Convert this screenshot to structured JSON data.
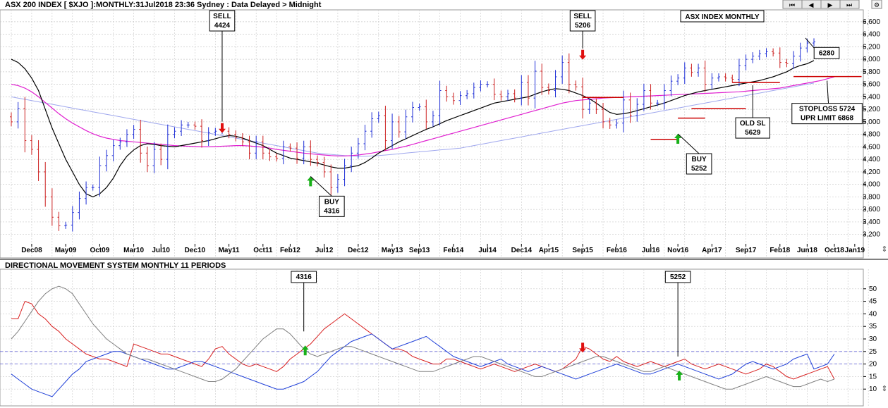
{
  "chart_data": [
    {
      "type": "bar",
      "title": "ASX 200 INDEX [ $XJO ]:MONTHLY:31Jul2018 23:36 Sydney : Data Delayed > Midnight",
      "badge": "ASX INDEX MONTHLY",
      "ylim": [
        3050,
        6700
      ],
      "yticks": [
        3200,
        3400,
        3600,
        3800,
        4000,
        4200,
        4400,
        4600,
        4800,
        5000,
        5200,
        5400,
        5600,
        5800,
        6000,
        6200,
        6400,
        6600
      ],
      "ytick_labels": [
        "3,200",
        "3,400",
        "3,600",
        "3,800",
        "4,000",
        "4,200",
        "4,400",
        "4,600",
        "4,800",
        "5,000",
        "5,200",
        "5,400",
        "5,600",
        "5,800",
        "6,000",
        "6,200",
        "6,400",
        "6,600"
      ],
      "x_tick_labels": [
        "Dec08",
        "May09",
        "Oct09",
        "Mar10",
        "Jul10",
        "Dec10",
        "May11",
        "Oct11",
        "Feb12",
        "Jul12",
        "Dec12",
        "May13",
        "Sep13",
        "Feb14",
        "Jul14",
        "Dec14",
        "Apr15",
        "Sep15",
        "Feb16",
        "Jul16",
        "Nov16",
        "Apr17",
        "Sep17",
        "Feb18",
        "Jun18",
        "Oct18",
        "Jan19"
      ],
      "months_total": 146,
      "close": [
        5000,
        5210,
        4700,
        4560,
        4200,
        3800,
        3475,
        3340,
        3350,
        3550,
        3775,
        3950,
        3950,
        4300,
        4460,
        4620,
        4680,
        4800,
        4880,
        4500,
        4300,
        4560,
        4400,
        4800,
        4850,
        4950,
        4950,
        4930,
        4700,
        4830,
        4850,
        4850,
        4800,
        4750,
        4680,
        4500,
        4680,
        4500,
        4440,
        4420,
        4600,
        4580,
        4420,
        4600,
        4400,
        4350,
        4200,
        3950,
        4080,
        4300,
        4500,
        4650,
        4850,
        5050,
        5100,
        4700,
        5000,
        4840,
        5080,
        5230,
        5240,
        5000,
        5100,
        5500,
        5400,
        5340,
        5420,
        5450,
        5550,
        5600,
        5600,
        5440,
        5400,
        5450,
        5380,
        5630,
        5380,
        5810,
        5550,
        5500,
        5720,
        5950,
        5600,
        5560,
        5200,
        5300,
        5200,
        5000,
        4950,
        4980,
        5350,
        5100,
        5280,
        5500,
        5300,
        5300,
        5500,
        5650,
        5700,
        5860,
        5790,
        5860,
        5600,
        5700,
        5720,
        5700,
        5680,
        5900,
        6000,
        6050,
        6090,
        6120,
        6100,
        5950,
        5930,
        6050,
        6180,
        6260,
        6280
      ],
      "min_w": 56,
      "sma10": [
        6000,
        5950,
        5850,
        5700,
        5500,
        5200,
        4900,
        4650,
        4400,
        4200,
        4000,
        3850,
        3800,
        3850,
        3950,
        4100,
        4300,
        4450,
        4550,
        4620,
        4650,
        4640,
        4620,
        4610,
        4600,
        4620,
        4640,
        4660,
        4680,
        4700,
        4730,
        4760,
        4780,
        4770,
        4740,
        4700,
        4660,
        4620,
        4560,
        4500,
        4460,
        4420,
        4400,
        4380,
        4360,
        4340,
        4310,
        4280,
        4260,
        4260,
        4280,
        4300,
        4350,
        4420,
        4500,
        4560,
        4620,
        4680,
        4730,
        4780,
        4830,
        4880,
        4920,
        4970,
        5020,
        5060,
        5100,
        5140,
        5180,
        5220,
        5260,
        5300,
        5320,
        5340,
        5360,
        5380,
        5400,
        5440,
        5480,
        5510,
        5530,
        5520,
        5500,
        5460,
        5420,
        5370,
        5300,
        5220,
        5150,
        5120,
        5130,
        5150,
        5180,
        5210,
        5240,
        5270,
        5300,
        5340,
        5380,
        5420,
        5450,
        5480,
        5500,
        5520,
        5540,
        5560,
        5580,
        5600,
        5620,
        5640,
        5660,
        5690,
        5720,
        5760,
        5800,
        5860,
        5900,
        5930,
        5980
      ],
      "ema_mid": [
        5600,
        5580,
        5540,
        5480,
        5400,
        5310,
        5220,
        5130,
        5050,
        4980,
        4920,
        4860,
        4810,
        4770,
        4740,
        4720,
        4700,
        4690,
        4680,
        4670,
        4660,
        4650,
        4640,
        4630,
        4620,
        4615,
        4610,
        4605,
        4600,
        4600,
        4605,
        4610,
        4615,
        4620,
        4620,
        4615,
        4605,
        4595,
        4580,
        4560,
        4545,
        4530,
        4515,
        4500,
        4490,
        4480,
        4470,
        4460,
        4455,
        4455,
        4460,
        4470,
        4485,
        4500,
        4520,
        4540,
        4560,
        4585,
        4610,
        4640,
        4670,
        4700,
        4730,
        4760,
        4790,
        4820,
        4850,
        4880,
        4910,
        4940,
        4970,
        5000,
        5030,
        5060,
        5090,
        5120,
        5150,
        5180,
        5210,
        5240,
        5270,
        5300,
        5320,
        5340,
        5350,
        5360,
        5370,
        5380,
        5385,
        5390,
        5395,
        5400,
        5405,
        5410,
        5415,
        5420,
        5425,
        5430,
        5435,
        5440,
        5445,
        5450,
        5455,
        5460,
        5465,
        5470,
        5475,
        5480,
        5490,
        5500,
        5510,
        5520,
        5530,
        5540,
        5560,
        5580,
        5600,
        5620,
        5640,
        5660,
        5690,
        5720
      ],
      "ema_slow": [
        5400,
        5380,
        5360,
        5340,
        5320,
        5300,
        5280,
        5260,
        5240,
        5220,
        5200,
        5180,
        5160,
        5140,
        5120,
        5100,
        5080,
        5060,
        5040,
        5020,
        5000,
        4980,
        4960,
        4940,
        4920,
        4900,
        4880,
        4860,
        4840,
        4820,
        4800,
        4780,
        4760,
        4740,
        4720,
        4700,
        4680,
        4660,
        4640,
        4620,
        4600,
        4580,
        4560,
        4540,
        4520,
        4500,
        4490,
        4480,
        4470,
        4460,
        4455,
        4450,
        4450,
        4455,
        4460,
        4470,
        4480,
        4490,
        4500,
        4510,
        4520,
        4530,
        4540,
        4550,
        4560,
        4570,
        4580,
        4600,
        4620,
        4640,
        4660,
        4680,
        4700,
        4720,
        4740,
        4760,
        4780,
        4800,
        4820,
        4840,
        4860,
        4880,
        4900,
        4920,
        4940,
        4960,
        4980,
        5000,
        5020,
        5040,
        5060,
        5080,
        5100,
        5120,
        5140,
        5160,
        5180,
        5200,
        5220,
        5240,
        5260,
        5280,
        5300,
        5320,
        5340,
        5360,
        5380,
        5400,
        5420,
        5440,
        5460,
        5480,
        5500,
        5520,
        5540,
        5560,
        5580,
        5600,
        5620
      ],
      "annotations": [
        {
          "lines": [
            "SELL",
            "4424"
          ],
          "type": "sell",
          "month": 31,
          "value": 4800
        },
        {
          "lines": [
            "BUY",
            "4316"
          ],
          "type": "buy",
          "month": 44,
          "value": 4150
        },
        {
          "lines": [
            "SELL",
            "5206"
          ],
          "type": "sell",
          "month": 84,
          "value": 5970
        },
        {
          "lines": [
            "BUY",
            "5252"
          ],
          "type": "buy",
          "month": 98,
          "value": 4830
        },
        {
          "lines": [
            "6280"
          ],
          "type": "label",
          "month": 118,
          "value": 6280
        },
        {
          "lines": [
            "OLD SL",
            "5629"
          ],
          "type": "label",
          "month": 109,
          "value": 5629
        },
        {
          "lines": [
            "STOPLOSS 5724",
            "UPR LIMIT 6868"
          ],
          "type": "label",
          "month": 122,
          "value": 5724
        }
      ],
      "support_levels": [
        {
          "from": 84,
          "to": 90,
          "value": 5390
        },
        {
          "from": 94,
          "to": 98,
          "value": 4720
        },
        {
          "from": 98,
          "to": 102,
          "value": 5060
        },
        {
          "from": 100,
          "to": 108,
          "value": 5210
        },
        {
          "from": 106,
          "to": 113,
          "value": 5629
        },
        {
          "from": 115,
          "to": 125,
          "value": 5724
        }
      ],
      "colors": {
        "up": "#1f2fd6",
        "down": "#cc2020",
        "sma": "#000000",
        "ema_mid": "#e020d0",
        "ema_slow": "#a0a8ee",
        "grid": "#c8c8c8",
        "support": "#cc0000"
      }
    },
    {
      "type": "line",
      "title": "DIRECTIONAL MOVEMENT SYSTEM MONTHLY 11 PERIODS",
      "ylim": [
        5,
        55
      ],
      "yticks": [
        10,
        15,
        20,
        25,
        30,
        35,
        40,
        45,
        50
      ],
      "ytick_labels": [
        "10",
        "15",
        "20",
        "25",
        "30",
        "35",
        "40",
        "45",
        "50"
      ],
      "ref_lines": [
        20,
        25
      ],
      "series": [
        {
          "color": "#d82020",
          "values": [
            38,
            38,
            45,
            44,
            40,
            38,
            35,
            33,
            30,
            28,
            26,
            24,
            23,
            22,
            22,
            21,
            20,
            19,
            28,
            27,
            26,
            25,
            24,
            24,
            23,
            22,
            21,
            20,
            19,
            22,
            26,
            27,
            24,
            22,
            20,
            19,
            20,
            19,
            18,
            17,
            19,
            22,
            24,
            26,
            28,
            31,
            34,
            36,
            38,
            40,
            38,
            36,
            34,
            32,
            30,
            28,
            26,
            26,
            25,
            23,
            22,
            21,
            20,
            20,
            22,
            22,
            21,
            20,
            19,
            18,
            19,
            20,
            19,
            18,
            17,
            18,
            19,
            20,
            19,
            18,
            17,
            18,
            20,
            22,
            27,
            26,
            24,
            22,
            21,
            23,
            21,
            20,
            19,
            20,
            21,
            20,
            19,
            20,
            21,
            22,
            20,
            19,
            18,
            19,
            20,
            19,
            18,
            17,
            16,
            17,
            18,
            20,
            19,
            17,
            15,
            14,
            15,
            16,
            17,
            18,
            19,
            14
          ]
        },
        {
          "color": "#2040d8",
          "values": [
            16,
            14,
            12,
            10,
            9,
            8,
            7,
            10,
            13,
            16,
            18,
            21,
            22,
            23,
            24,
            25,
            25,
            24,
            23,
            22,
            21,
            20,
            19,
            18,
            18,
            19,
            20,
            21,
            21,
            20,
            19,
            18,
            17,
            16,
            15,
            14,
            13,
            12,
            11,
            10,
            10,
            11,
            12,
            13,
            15,
            17,
            20,
            23,
            25,
            27,
            29,
            30,
            31,
            32,
            30,
            28,
            26,
            27,
            28,
            29,
            30,
            31,
            29,
            27,
            25,
            23,
            22,
            21,
            20,
            19,
            20,
            21,
            22,
            20,
            19,
            18,
            17,
            18,
            19,
            18,
            17,
            16,
            15,
            14,
            15,
            16,
            17,
            18,
            19,
            20,
            19,
            18,
            17,
            16,
            16,
            17,
            18,
            19,
            20,
            19,
            18,
            17,
            16,
            15,
            14,
            15,
            16,
            18,
            20,
            21,
            20,
            19,
            18,
            19,
            20,
            22,
            23,
            24,
            18,
            19,
            20,
            24
          ]
        },
        {
          "color": "#808080",
          "values": [
            30,
            33,
            37,
            41,
            45,
            48,
            50,
            51,
            50,
            48,
            44,
            40,
            36,
            33,
            30,
            28,
            26,
            24,
            23,
            22,
            22,
            21,
            20,
            19,
            18,
            17,
            16,
            15,
            14,
            13,
            13,
            14,
            16,
            18,
            21,
            24,
            27,
            30,
            32,
            34,
            34,
            32,
            29,
            26,
            24,
            23,
            24,
            25,
            26,
            27,
            27,
            26,
            25,
            24,
            23,
            22,
            21,
            20,
            19,
            18,
            17,
            17,
            17,
            18,
            19,
            20,
            21,
            22,
            23,
            23,
            22,
            21,
            20,
            19,
            18,
            17,
            16,
            15,
            15,
            16,
            17,
            18,
            19,
            20,
            21,
            22,
            23,
            23,
            22,
            21,
            20,
            19,
            18,
            17,
            17,
            18,
            19,
            18,
            17,
            16,
            15,
            14,
            13,
            12,
            11,
            10,
            10,
            11,
            12,
            13,
            14,
            15,
            14,
            13,
            12,
            11,
            11,
            12,
            13,
            14,
            13,
            14
          ]
        }
      ],
      "annotations": [
        {
          "lines": [
            "4316"
          ],
          "type": "buy",
          "month": 43,
          "value": 33
        },
        {
          "lines": [
            "5252"
          ],
          "type": "buy",
          "month": 98,
          "value": 23
        },
        {
          "lines": [
            ""
          ],
          "type": "sell",
          "month": 84,
          "value": 24
        }
      ],
      "colors": {
        "ref": "#6a6ad8",
        "grid": "#c8c8c8"
      }
    }
  ]
}
